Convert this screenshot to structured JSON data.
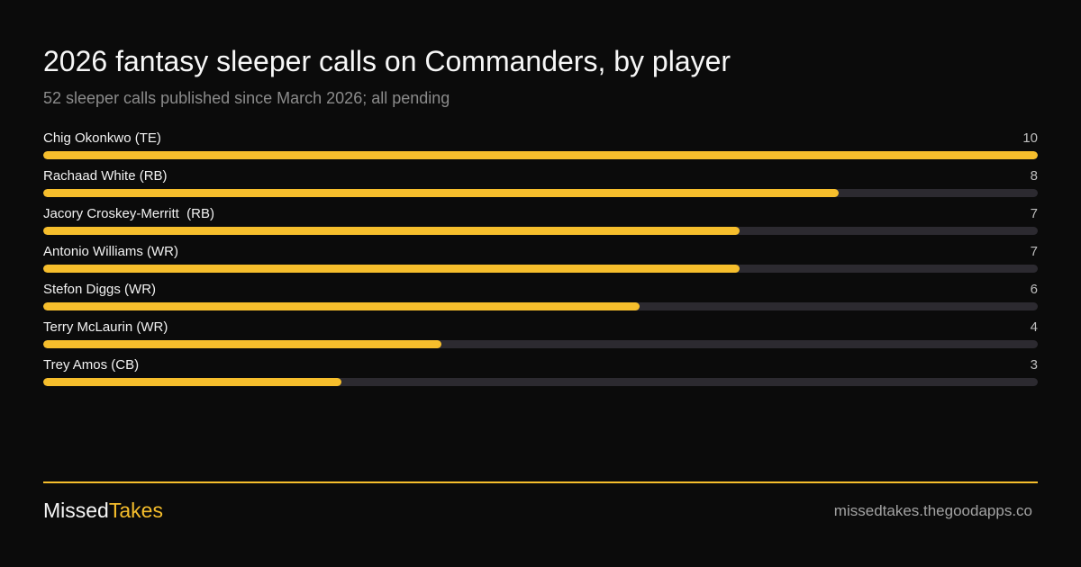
{
  "colors": {
    "background": "#0b0b0b",
    "accent": "#f6be2c",
    "track": "#2c2a30"
  },
  "chart_data": {
    "type": "bar",
    "orientation": "horizontal",
    "title": "2026 fantasy sleeper calls on Commanders, by player",
    "subtitle": "52 sleeper calls published since March 2026; all pending",
    "categories": [
      "Chig Okonkwo (TE)",
      "Rachaad White (RB)",
      "Jacory Croskey-Merritt  (RB)",
      "Antonio Williams (WR)",
      "Stefon Diggs (WR)",
      "Terry McLaurin (WR)",
      "Trey Amos (CB)"
    ],
    "values": [
      10,
      8,
      7,
      7,
      6,
      4,
      3
    ],
    "xlim": [
      0,
      10
    ],
    "grid": false,
    "legend": "none"
  },
  "footer": {
    "brand_part1": "Missed",
    "brand_part2": "Takes",
    "site": "missedtakes.thegoodapps.co"
  }
}
